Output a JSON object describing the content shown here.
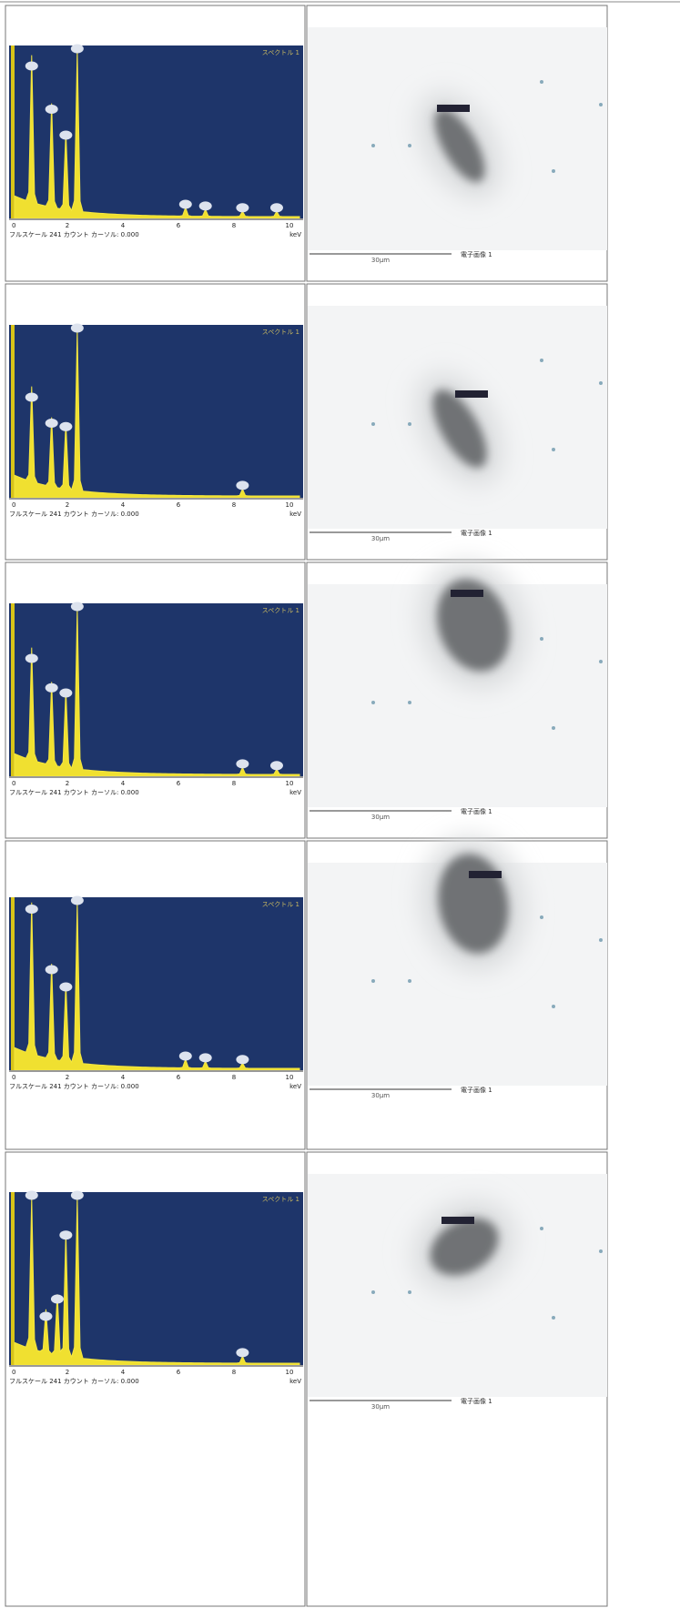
{
  "rows": [
    {
      "spectrum": {
        "label": "スペクトル 1",
        "ticks": [
          "0",
          "2",
          "4",
          "6",
          "8",
          "10"
        ],
        "unit": "keV",
        "caption": "フルスケール 241 カウント カーソル: 0.000"
      },
      "image": {
        "scale": "30μm",
        "label": "電子画像 1"
      }
    },
    {
      "spectrum": {
        "label": "スペクトル 1",
        "ticks": [
          "0",
          "2",
          "4",
          "6",
          "8",
          "10"
        ],
        "unit": "keV",
        "caption": "フルスケール 241 カウント カーソル: 0.000"
      },
      "image": {
        "scale": "30μm",
        "label": "電子画像 1"
      }
    },
    {
      "spectrum": {
        "label": "スペクトル 1",
        "ticks": [
          "0",
          "2",
          "4",
          "6",
          "8",
          "10"
        ],
        "unit": "keV",
        "caption": "フルスケール 241 カウント カーソル: 0.000"
      },
      "image": {
        "scale": "30μm",
        "label": "電子画像 1"
      }
    },
    {
      "spectrum": {
        "label": "スペクトル 1",
        "ticks": [
          "0",
          "2",
          "4",
          "6",
          "8",
          "10"
        ],
        "unit": "keV",
        "caption": "フルスケール 241 カウント カーソル: 0.000"
      },
      "image": {
        "scale": "30μm",
        "label": "電子画像 1"
      }
    },
    {
      "spectrum": {
        "label": "スペクトル 1",
        "ticks": [
          "0",
          "2",
          "4",
          "6",
          "8",
          "10"
        ],
        "unit": "keV",
        "caption": "フルスケール 241 カウント カーソル: 0.000"
      },
      "image": {
        "scale": "30μm",
        "label": "電子画像 1"
      }
    }
  ]
}
